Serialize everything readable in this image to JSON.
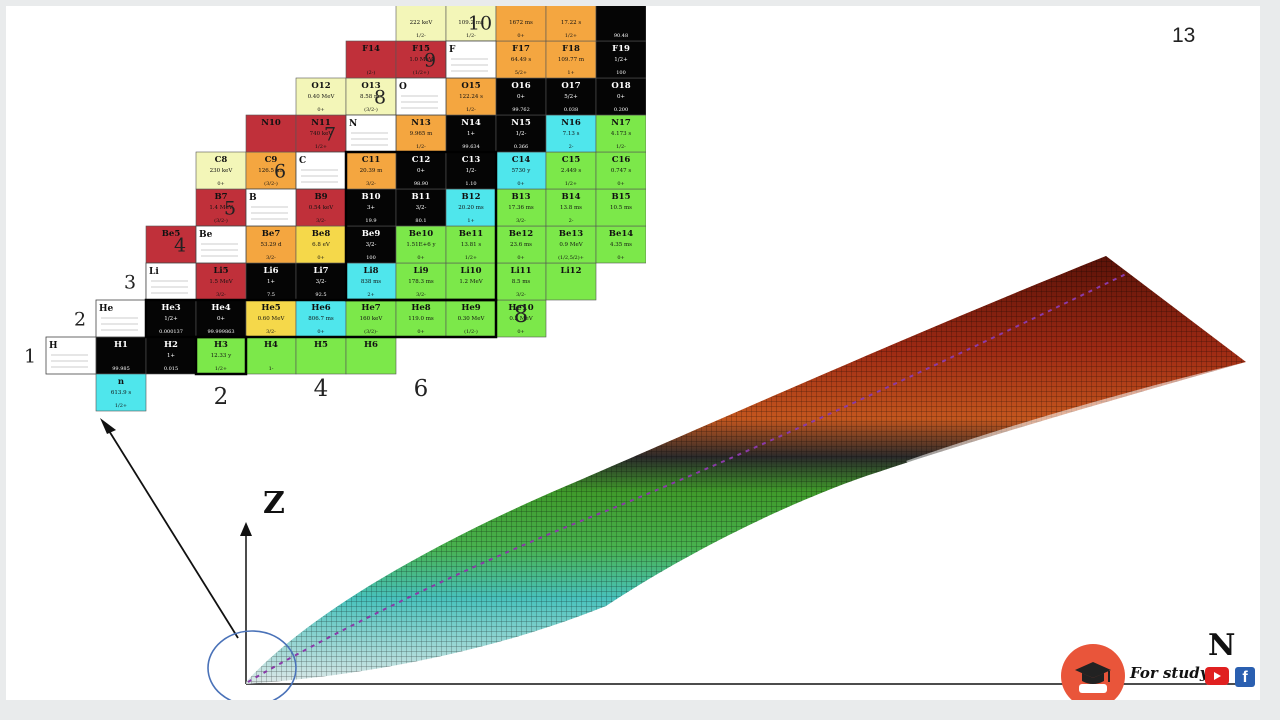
{
  "slide": {
    "page_number": "13",
    "axis_z": "Z",
    "axis_n": "N",
    "brand": {
      "text": "For study",
      "youtube_icon": "youtube-icon",
      "facebook_icon": "facebook-icon",
      "facebook_glyph": "f",
      "logo_icon": "graduation-cap-icon"
    }
  },
  "chart": {
    "row_labels": [
      "1",
      "2",
      "3",
      "4",
      "5",
      "6",
      "7",
      "8",
      "9",
      "10"
    ],
    "column_labels": [
      "2",
      "4",
      "6",
      "8"
    ],
    "element_labels": [
      "H",
      "He",
      "Li",
      "Be",
      "B",
      "C",
      "N",
      "O",
      "F"
    ],
    "cells": [
      {
        "row": 1,
        "col": 1,
        "name": "H1",
        "line2": "",
        "line3": "99.985",
        "color": "black"
      },
      {
        "row": 1,
        "col": 2,
        "name": "H2",
        "line2": "1+",
        "line3": "0.015",
        "color": "black"
      },
      {
        "row": 1,
        "col": 3,
        "name": "H3",
        "line2": "12.33 y",
        "line3": "1/2+",
        "color": "green"
      },
      {
        "row": 1,
        "col": 4,
        "name": "H4",
        "line2": "",
        "line3": "1-",
        "color": "green"
      },
      {
        "row": 1,
        "col": 5,
        "name": "H5",
        "line2": "",
        "line3": "",
        "color": "green"
      },
      {
        "row": 1,
        "col": 6,
        "name": "H6",
        "line2": "",
        "line3": "",
        "color": "green"
      },
      {
        "row": 0,
        "col": 1,
        "name": "n",
        "line2": "613.9 s",
        "line3": "1/2+",
        "color": "cyan"
      },
      {
        "row": 2,
        "col": 2,
        "name": "He3",
        "line2": "1/2+",
        "line3": "0.000137",
        "color": "black"
      },
      {
        "row": 2,
        "col": 3,
        "name": "He4",
        "line2": "0+",
        "line3": "99.999863",
        "color": "black"
      },
      {
        "row": 2,
        "col": 4,
        "name": "He5",
        "line2": "0.60 MeV",
        "line3": "3/2-",
        "color": "yellow"
      },
      {
        "row": 2,
        "col": 5,
        "name": "He6",
        "line2": "806.7 ms",
        "line3": "0+",
        "color": "cyan"
      },
      {
        "row": 2,
        "col": 6,
        "name": "He7",
        "line2": "160 keV",
        "line3": "(3/2)-",
        "color": "green"
      },
      {
        "row": 2,
        "col": 7,
        "name": "He8",
        "line2": "119.0 ms",
        "line3": "0+",
        "color": "green"
      },
      {
        "row": 2,
        "col": 8,
        "name": "He9",
        "line2": "0.30 MeV",
        "line3": "(1/2-)",
        "color": "green"
      },
      {
        "row": 2,
        "col": 9,
        "name": "He10",
        "line2": "0.3 MeV",
        "line3": "0+",
        "color": "green"
      },
      {
        "row": 3,
        "col": 2,
        "name": "Li4",
        "line2": "",
        "line3": "2-",
        "color": "red"
      },
      {
        "row": 3,
        "col": 3,
        "name": "Li5",
        "line2": "1.5 MeV",
        "line3": "3/2-",
        "color": "red"
      },
      {
        "row": 3,
        "col": 4,
        "name": "Li6",
        "line2": "1+",
        "line3": "7.5",
        "color": "black"
      },
      {
        "row": 3,
        "col": 5,
        "name": "Li7",
        "line2": "3/2-",
        "line3": "92.5",
        "color": "black"
      },
      {
        "row": 3,
        "col": 6,
        "name": "Li8",
        "line2": "838 ms",
        "line3": "2+",
        "color": "cyan"
      },
      {
        "row": 3,
        "col": 7,
        "name": "Li9",
        "line2": "178.3 ms",
        "line3": "3/2-",
        "color": "green"
      },
      {
        "row": 3,
        "col": 8,
        "name": "Li10",
        "line2": "1.2 MeV",
        "line3": "",
        "color": "green"
      },
      {
        "row": 3,
        "col": 9,
        "name": "Li11",
        "line2": "8.5 ms",
        "line3": "3/2-",
        "color": "green"
      },
      {
        "row": 3,
        "col": 10,
        "name": "Li12",
        "line2": "",
        "line3": "",
        "color": "green"
      },
      {
        "row": 4,
        "col": 2,
        "name": "Be5",
        "line2": "",
        "line3": "",
        "color": "red"
      },
      {
        "row": 4,
        "col": 3,
        "name": "Be6",
        "line2": "92 keV",
        "line3": "0+",
        "color": "pale"
      },
      {
        "row": 4,
        "col": 4,
        "name": "Be7",
        "line2": "53.29 d",
        "line3": "3/2-",
        "color": "orange"
      },
      {
        "row": 4,
        "col": 5,
        "name": "Be8",
        "line2": "6.8 eV",
        "line3": "0+",
        "color": "yellow"
      },
      {
        "row": 4,
        "col": 6,
        "name": "Be9",
        "line2": "3/2-",
        "line3": "100",
        "color": "black"
      },
      {
        "row": 4,
        "col": 7,
        "name": "Be10",
        "line2": "1.51E+6 y",
        "line3": "0+",
        "color": "green"
      },
      {
        "row": 4,
        "col": 8,
        "name": "Be11",
        "line2": "13.81 s",
        "line3": "1/2+",
        "color": "green"
      },
      {
        "row": 4,
        "col": 9,
        "name": "Be12",
        "line2": "23.6 ms",
        "line3": "0+",
        "color": "green"
      },
      {
        "row": 4,
        "col": 10,
        "name": "Be13",
        "line2": "0.9 MeV",
        "line3": "(1/2,5/2)+",
        "color": "green"
      },
      {
        "row": 4,
        "col": 11,
        "name": "Be14",
        "line2": "4.35 ms",
        "line3": "0+",
        "color": "green"
      },
      {
        "row": 5,
        "col": 3,
        "name": "B7",
        "line2": "1.4 MeV",
        "line3": "(3/2-)",
        "color": "red"
      },
      {
        "row": 5,
        "col": 4,
        "name": "B8",
        "line2": "770 ms",
        "line3": "2+",
        "color": "orange"
      },
      {
        "row": 5,
        "col": 5,
        "name": "B9",
        "line2": "0.54 keV",
        "line3": "3/2-",
        "color": "red"
      },
      {
        "row": 5,
        "col": 6,
        "name": "B10",
        "line2": "3+",
        "line3": "19.9",
        "color": "black"
      },
      {
        "row": 5,
        "col": 7,
        "name": "B11",
        "line2": "3/2-",
        "line3": "80.1",
        "color": "black"
      },
      {
        "row": 5,
        "col": 8,
        "name": "B12",
        "line2": "20.20 ms",
        "line3": "1+",
        "color": "cyan"
      },
      {
        "row": 5,
        "col": 9,
        "name": "B13",
        "line2": "17.36 ms",
        "line3": "3/2-",
        "color": "green"
      },
      {
        "row": 5,
        "col": 10,
        "name": "B14",
        "line2": "13.8 ms",
        "line3": "2-",
        "color": "green"
      },
      {
        "row": 5,
        "col": 11,
        "name": "B15",
        "line2": "10.5 ms",
        "line3": "",
        "color": "green"
      },
      {
        "row": 6,
        "col": 3,
        "name": "C8",
        "line2": "230 keV",
        "line3": "0+",
        "color": "pale"
      },
      {
        "row": 6,
        "col": 4,
        "name": "C9",
        "line2": "126.5 ms",
        "line3": "(3/2-)",
        "color": "orange"
      },
      {
        "row": 6,
        "col": 5,
        "name": "C10",
        "line2": "19.255 s",
        "line3": "0+",
        "color": "orange"
      },
      {
        "row": 6,
        "col": 6,
        "name": "C11",
        "line2": "20.39 m",
        "line3": "3/2-",
        "color": "orange"
      },
      {
        "row": 6,
        "col": 7,
        "name": "C12",
        "line2": "0+",
        "line3": "98.90",
        "color": "black"
      },
      {
        "row": 6,
        "col": 8,
        "name": "C13",
        "line2": "1/2-",
        "line3": "1.10",
        "color": "black"
      },
      {
        "row": 6,
        "col": 9,
        "name": "C14",
        "line2": "5730 y",
        "line3": "0+",
        "color": "cyan"
      },
      {
        "row": 6,
        "col": 10,
        "name": "C15",
        "line2": "2.449 s",
        "line3": "1/2+",
        "color": "green"
      },
      {
        "row": 6,
        "col": 11,
        "name": "C16",
        "line2": "0.747 s",
        "line3": "0+",
        "color": "green"
      },
      {
        "row": 7,
        "col": 4,
        "name": "N10",
        "line2": "",
        "line3": "",
        "color": "red"
      },
      {
        "row": 7,
        "col": 5,
        "name": "N11",
        "line2": "740 keV",
        "line3": "1/2+",
        "color": "red"
      },
      {
        "row": 7,
        "col": 6,
        "name": "N12",
        "line2": "11.000 ms",
        "line3": "1+",
        "color": "orange"
      },
      {
        "row": 7,
        "col": 7,
        "name": "N13",
        "line2": "9.965 m",
        "line3": "1/2-",
        "color": "orange"
      },
      {
        "row": 7,
        "col": 8,
        "name": "N14",
        "line2": "1+",
        "line3": "99.634",
        "color": "black"
      },
      {
        "row": 7,
        "col": 9,
        "name": "N15",
        "line2": "1/2-",
        "line3": "0.366",
        "color": "black"
      },
      {
        "row": 7,
        "col": 10,
        "name": "N16",
        "line2": "7.13 s",
        "line3": "2-",
        "color": "cyan"
      },
      {
        "row": 7,
        "col": 11,
        "name": "N17",
        "line2": "4.173 s",
        "line3": "1/2-",
        "color": "green"
      },
      {
        "row": 8,
        "col": 5,
        "name": "O12",
        "line2": "0.40 MeV",
        "line3": "0+",
        "color": "pale"
      },
      {
        "row": 8,
        "col": 6,
        "name": "O13",
        "line2": "8.58 ms",
        "line3": "(3/2-)",
        "color": "pale"
      },
      {
        "row": 8,
        "col": 7,
        "name": "O14",
        "line2": "70.606 s",
        "line3": "0+",
        "color": "orange"
      },
      {
        "row": 8,
        "col": 8,
        "name": "O15",
        "line2": "122.24 s",
        "line3": "1/2-",
        "color": "orange"
      },
      {
        "row": 8,
        "col": 9,
        "name": "O16",
        "line2": "0+",
        "line3": "99.762",
        "color": "black"
      },
      {
        "row": 8,
        "col": 10,
        "name": "O17",
        "line2": "5/2+",
        "line3": "0.038",
        "color": "black"
      },
      {
        "row": 8,
        "col": 11,
        "name": "O18",
        "line2": "0+",
        "line3": "0.200",
        "color": "black"
      },
      {
        "row": 9,
        "col": 6,
        "name": "F14",
        "line2": "",
        "line3": "(2-)",
        "color": "red"
      },
      {
        "row": 9,
        "col": 7,
        "name": "F15",
        "line2": "1.0 MeV",
        "line3": "(1/2+)",
        "color": "red"
      },
      {
        "row": 9,
        "col": 8,
        "name": "F16",
        "line2": "40 keV",
        "line3": "0-",
        "color": "red"
      },
      {
        "row": 9,
        "col": 9,
        "name": "F17",
        "line2": "64.49 s",
        "line3": "5/2+",
        "color": "orange"
      },
      {
        "row": 9,
        "col": 10,
        "name": "F18",
        "line2": "109.77 m",
        "line3": "1+",
        "color": "orange"
      },
      {
        "row": 9,
        "col": 11,
        "name": "F19",
        "line2": "1/2+",
        "line3": "100",
        "color": "black"
      },
      {
        "row": 10,
        "col": 7,
        "name": "",
        "line2": "222 keV",
        "line3": "1/2-",
        "color": "pale"
      },
      {
        "row": 10,
        "col": 8,
        "name": "",
        "line2": "109.2 ms",
        "line3": "1/2-",
        "color": "pale"
      },
      {
        "row": 10,
        "col": 9,
        "name": "",
        "line2": "1672 ms",
        "line3": "0+",
        "color": "orange"
      },
      {
        "row": 10,
        "col": 10,
        "name": "",
        "line2": "17.22 s",
        "line3": "1/2+",
        "color": "orange"
      },
      {
        "row": 10,
        "col": 11,
        "name": "",
        "line2": "",
        "line3": "90.48",
        "color": "black"
      }
    ]
  },
  "colors": {
    "black": "#050505",
    "red": "#c0303a",
    "orange": "#f4a640",
    "yellow": "#f5d84a",
    "pale": "#f3f6b8",
    "green": "#7ce84a",
    "cyan": "#4fe6ec",
    "ellipse": "#4a72b8",
    "logo": "#e9553a"
  }
}
